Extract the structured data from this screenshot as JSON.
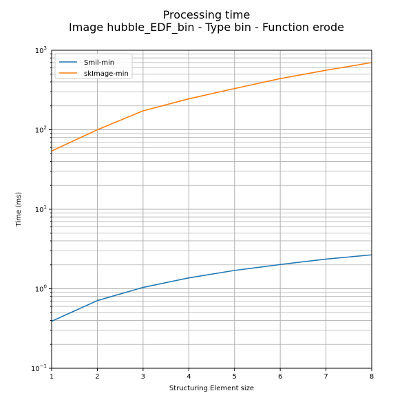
{
  "chart_data": {
    "type": "line",
    "title": "Processing time",
    "subtitle": "Image hubble_EDF_bin - Type bin - Function erode",
    "xlabel": "Structuring Element size",
    "ylabel": "Time (ms)",
    "x": [
      1,
      2,
      3,
      4,
      5,
      6,
      7,
      8
    ],
    "xlim": [
      1,
      8
    ],
    "ylim": [
      0.1,
      1000
    ],
    "yscale": "log",
    "grid": true,
    "legend_position": "top-left",
    "x_ticks": [
      "1",
      "2",
      "3",
      "4",
      "5",
      "6",
      "7",
      "8"
    ],
    "y_ticks": [
      {
        "value": 0.1,
        "base": "10",
        "exp": "−1"
      },
      {
        "value": 1,
        "base": "10",
        "exp": "0"
      },
      {
        "value": 10,
        "base": "10",
        "exp": "1"
      },
      {
        "value": 100,
        "base": "10",
        "exp": "2"
      },
      {
        "value": 1000,
        "base": "10",
        "exp": "3"
      }
    ],
    "series": [
      {
        "name": "Smil-min",
        "color": "#1f77b4",
        "values": [
          0.39,
          0.71,
          1.04,
          1.37,
          1.7,
          2.02,
          2.36,
          2.67
        ]
      },
      {
        "name": "skImage-min",
        "color": "#ff7f0e",
        "values": [
          54,
          100,
          173,
          245,
          330,
          440,
          560,
          700
        ]
      }
    ]
  }
}
